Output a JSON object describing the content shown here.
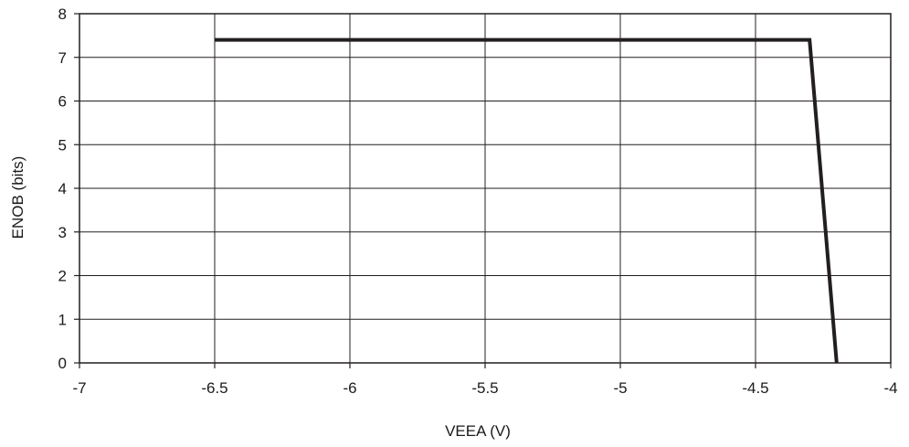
{
  "chart_data": {
    "type": "line",
    "title": "",
    "xlabel": "VEEA (V)",
    "ylabel": "ENOB (bits)",
    "xlim": [
      -7,
      -4
    ],
    "ylim": [
      0,
      8
    ],
    "xticks": [
      -7,
      -6.5,
      -6,
      -5.5,
      -5,
      -4.5,
      -4
    ],
    "yticks": [
      0,
      1,
      2,
      3,
      4,
      5,
      6,
      7,
      8
    ],
    "xtick_labels": [
      "-7",
      "-6.5",
      "-6",
      "-5.5",
      "-5",
      "-4.5",
      "-4"
    ],
    "ytick_labels": [
      "0",
      "1",
      "2",
      "3",
      "4",
      "5",
      "6",
      "7",
      "8"
    ],
    "grid": true,
    "legend": "none",
    "series": [
      {
        "color": "#231f20",
        "x": [
          -6.5,
          -4.3,
          -4.2
        ],
        "y": [
          7.4,
          7.4,
          0
        ]
      }
    ]
  }
}
